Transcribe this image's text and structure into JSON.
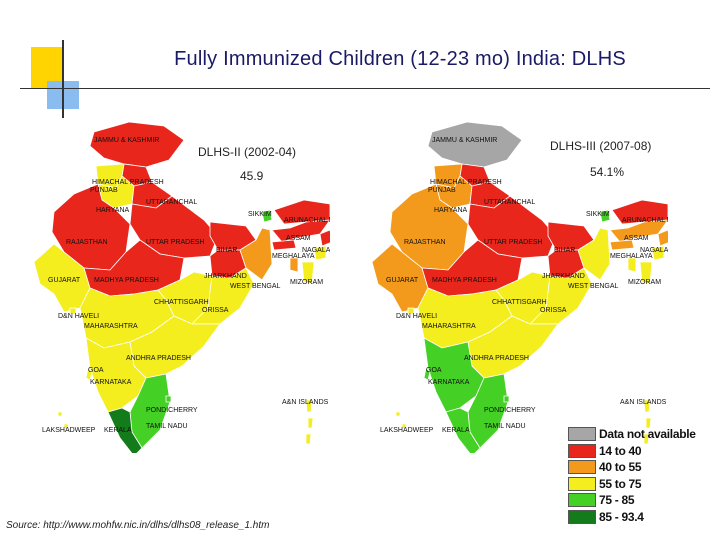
{
  "title": "Fully Immunized Children (12-23 mo) India:  DLHS",
  "maps": [
    {
      "name": "DLHS-II (2002-04)",
      "value": "45.9"
    },
    {
      "name": "DLHS-III (2007-08)",
      "value": "54.1%"
    }
  ],
  "states": [
    {
      "name": "JAMMU & KASHMIR",
      "cat": [
        1,
        0
      ]
    },
    {
      "name": "HIMACHAL PRADESH",
      "cat": [
        1,
        1
      ]
    },
    {
      "name": "PUNJAB",
      "cat": [
        3,
        2
      ]
    },
    {
      "name": "HARYANA",
      "cat": [
        3,
        2
      ]
    },
    {
      "name": "UTTARANCHAL",
      "cat": [
        1,
        1
      ]
    },
    {
      "name": "RAJASTHAN",
      "cat": [
        1,
        2
      ]
    },
    {
      "name": "UTTAR PRADESH",
      "cat": [
        1,
        1
      ]
    },
    {
      "name": "BIHAR",
      "cat": [
        1,
        1
      ]
    },
    {
      "name": "GUJARAT",
      "cat": [
        3,
        2
      ]
    },
    {
      "name": "MADHYA PRADESH",
      "cat": [
        1,
        1
      ]
    },
    {
      "name": "JHARKHAND",
      "cat": [
        1,
        1
      ]
    },
    {
      "name": "WEST BENGAL",
      "cat": [
        2,
        3
      ]
    },
    {
      "name": "CHHATTISGARH",
      "cat": [
        3,
        3
      ]
    },
    {
      "name": "ORISSA",
      "cat": [
        3,
        3
      ]
    },
    {
      "name": "MAHARASHTRA",
      "cat": [
        3,
        3
      ]
    },
    {
      "name": "ANDHRA PRADESH",
      "cat": [
        3,
        3
      ]
    },
    {
      "name": "KARNATAKA",
      "cat": [
        3,
        4
      ]
    },
    {
      "name": "GOA",
      "cat": [
        3,
        4
      ]
    },
    {
      "name": "TAMIL NADU",
      "cat": [
        4,
        4
      ]
    },
    {
      "name": "KERALA",
      "cat": [
        5,
        4
      ]
    },
    {
      "name": "SIKKIM",
      "cat": [
        4,
        4
      ]
    },
    {
      "name": "ARUNACHAL PRADESH",
      "cat": [
        1,
        1
      ]
    },
    {
      "name": "ASSAM",
      "cat": [
        1,
        2
      ]
    },
    {
      "name": "NAGALAND",
      "cat": [
        1,
        2
      ]
    },
    {
      "name": "MEGHALAYA",
      "cat": [
        1,
        2
      ]
    },
    {
      "name": "MANIPUR",
      "cat": [
        3,
        3
      ]
    },
    {
      "name": "MIZORAM",
      "cat": [
        3,
        3
      ]
    },
    {
      "name": "TRIPURA",
      "cat": [
        2,
        3
      ]
    },
    {
      "name": "D&N HAVELI",
      "cat": [
        3,
        3
      ]
    },
    {
      "name": "PONDICHERRY",
      "cat": [
        4,
        4
      ]
    },
    {
      "name": "A&N ISLANDS",
      "cat": [
        3,
        3
      ]
    },
    {
      "name": "LAKSHADWEEP",
      "cat": [
        3,
        3
      ]
    }
  ],
  "legend": [
    {
      "label": "Data not available",
      "color": "#a6a6a6"
    },
    {
      "label": "14 to 40",
      "color": "#e8261c"
    },
    {
      "label": "40 to 55",
      "color": "#f39a1c"
    },
    {
      "label": "55 to 75",
      "color": "#f4ee1f"
    },
    {
      "label": "75 - 85",
      "color": "#44d024"
    },
    {
      "label": "85 - 93.4",
      "color": "#137b19"
    }
  ],
  "source": "Source: http://www.mohfw.nic.in/dlhs/dlhs08_release_1.htm"
}
